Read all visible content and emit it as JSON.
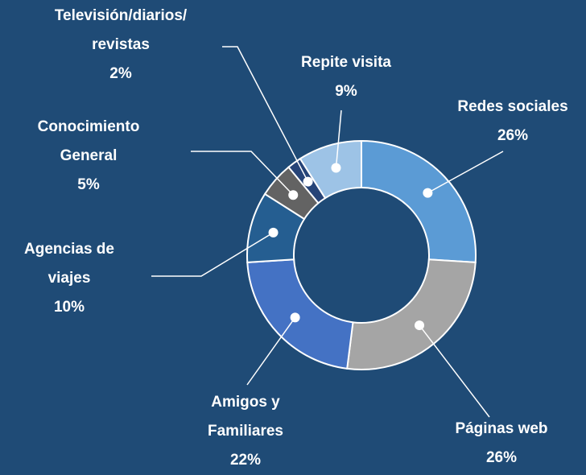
{
  "chart_data": {
    "type": "donut",
    "categories": [
      "Redes sociales",
      "Páginas web",
      "Amigos y\nFamiliares",
      "Agencias de\nviajes",
      "Conocimiento\nGeneral",
      "Televisión/diarios/\nrevistas",
      "Repite visita"
    ],
    "values": [
      26,
      26,
      22,
      10,
      5,
      2,
      9
    ],
    "value_labels": [
      "26%",
      "26%",
      "22%",
      "10%",
      "5%",
      "2%",
      "9%"
    ],
    "colors": [
      "#5b9bd5",
      "#a5a5a5",
      "#4472c4",
      "#255e91",
      "#636363",
      "#264478",
      "#9dc3e6"
    ]
  }
}
